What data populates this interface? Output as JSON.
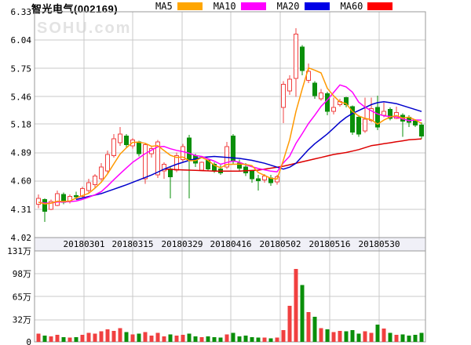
{
  "header": {
    "title": "智光电气(002169)",
    "legend": [
      {
        "label": "MA5",
        "color": "#ffa600"
      },
      {
        "label": "MA10",
        "color": "#ff00ff"
      },
      {
        "label": "MA20",
        "color": "#0000e6"
      },
      {
        "label": "MA60",
        "color": "#ff0000"
      }
    ]
  },
  "watermark": "SOHU.com",
  "chart_data": {
    "type": "candlestick",
    "title": "智光电气(002169)",
    "price_axis": {
      "ticks": [
        "6.33",
        "6.04",
        "5.75",
        "5.46",
        "5.18",
        "4.89",
        "4.60",
        "4.31",
        "4.02"
      ],
      "range": [
        4.02,
        6.33
      ]
    },
    "volume_axis": {
      "ticks": [
        {
          "v": 131,
          "label": "131万"
        },
        {
          "v": 98,
          "label": "98万"
        },
        {
          "v": 65,
          "label": "65万"
        },
        {
          "v": 32,
          "label": "32万"
        },
        {
          "v": 0,
          "label": "0"
        }
      ],
      "unit": "万",
      "max": 131
    },
    "x_axis": {
      "ticks": [
        "20180301",
        "20180315",
        "20180329",
        "20180416",
        "20180502",
        "20180516",
        "20180530"
      ]
    },
    "legend_entries": [
      "MA5",
      "MA10",
      "MA20",
      "MA60"
    ],
    "ohlcv": [
      [
        4.36,
        4.46,
        4.32,
        4.42,
        12
      ],
      [
        4.41,
        4.42,
        4.18,
        4.29,
        9
      ],
      [
        4.31,
        4.41,
        4.3,
        4.39,
        8
      ],
      [
        4.35,
        4.5,
        4.34,
        4.47,
        10
      ],
      [
        4.46,
        4.48,
        4.36,
        4.38,
        7
      ],
      [
        4.39,
        4.46,
        4.37,
        4.44,
        6
      ],
      [
        4.45,
        4.49,
        4.41,
        4.44,
        7
      ],
      [
        4.44,
        4.54,
        4.42,
        4.52,
        10
      ],
      [
        4.5,
        4.62,
        4.47,
        4.58,
        13
      ],
      [
        4.56,
        4.67,
        4.53,
        4.65,
        12
      ],
      [
        4.62,
        4.78,
        4.6,
        4.74,
        15
      ],
      [
        4.7,
        4.91,
        4.68,
        4.87,
        18
      ],
      [
        4.86,
        5.08,
        4.84,
        5.03,
        16
      ],
      [
        4.99,
        5.15,
        4.96,
        5.08,
        20
      ],
      [
        5.06,
        5.08,
        4.94,
        4.97,
        14
      ],
      [
        4.96,
        5.04,
        4.93,
        5.02,
        11
      ],
      [
        5.0,
        5.01,
        4.85,
        4.88,
        12
      ],
      [
        4.62,
        4.99,
        4.57,
        4.97,
        14
      ],
      [
        4.88,
        4.96,
        4.84,
        4.93,
        9
      ],
      [
        4.66,
        5.02,
        4.63,
        5.0,
        13
      ],
      [
        4.7,
        4.79,
        4.62,
        4.77,
        8
      ],
      [
        4.72,
        4.74,
        4.42,
        4.64,
        11
      ],
      [
        4.71,
        4.89,
        4.69,
        4.86,
        9
      ],
      [
        4.82,
        4.98,
        4.8,
        4.95,
        10
      ],
      [
        5.04,
        5.07,
        4.42,
        4.81,
        12
      ],
      [
        4.86,
        4.88,
        4.74,
        4.78,
        8
      ],
      [
        4.71,
        4.8,
        4.7,
        4.79,
        7
      ],
      [
        4.81,
        4.82,
        4.7,
        4.72,
        8
      ],
      [
        4.77,
        4.79,
        4.68,
        4.7,
        7
      ],
      [
        4.72,
        4.76,
        4.66,
        4.68,
        6
      ],
      [
        4.74,
        5.0,
        4.72,
        4.95,
        11
      ],
      [
        5.06,
        5.08,
        4.77,
        4.8,
        13
      ],
      [
        4.78,
        4.82,
        4.7,
        4.73,
        8
      ],
      [
        4.74,
        4.78,
        4.65,
        4.68,
        9
      ],
      [
        4.7,
        4.71,
        4.58,
        4.62,
        7
      ],
      [
        4.62,
        4.66,
        4.5,
        4.6,
        6
      ],
      [
        4.61,
        4.67,
        4.58,
        4.65,
        6
      ],
      [
        4.63,
        4.66,
        4.55,
        4.58,
        5
      ],
      [
        4.59,
        4.66,
        4.56,
        4.64,
        6
      ],
      [
        5.35,
        5.62,
        5.19,
        5.59,
        17
      ],
      [
        5.52,
        5.68,
        5.48,
        5.64,
        52
      ],
      [
        5.65,
        6.16,
        5.46,
        6.1,
        105
      ],
      [
        5.97,
        5.99,
        5.68,
        5.73,
        82
      ],
      [
        5.63,
        5.8,
        5.6,
        5.72,
        43
      ],
      [
        5.6,
        5.62,
        5.44,
        5.47,
        36
      ],
      [
        5.44,
        5.54,
        5.42,
        5.5,
        20
      ],
      [
        5.49,
        5.51,
        5.27,
        5.31,
        18
      ],
      [
        5.31,
        5.45,
        5.28,
        5.35,
        14
      ],
      [
        5.38,
        5.44,
        5.36,
        5.41,
        16
      ],
      [
        5.45,
        5.46,
        5.35,
        5.38,
        15
      ],
      [
        5.36,
        5.37,
        5.07,
        5.1,
        17
      ],
      [
        5.25,
        5.27,
        5.05,
        5.08,
        12
      ],
      [
        5.11,
        5.45,
        5.09,
        5.23,
        15
      ],
      [
        5.22,
        5.45,
        5.2,
        5.34,
        13
      ],
      [
        5.35,
        5.47,
        5.12,
        5.15,
        25
      ],
      [
        5.27,
        5.4,
        5.25,
        5.31,
        19
      ],
      [
        5.33,
        5.35,
        5.22,
        5.24,
        13
      ],
      [
        5.24,
        5.36,
        5.23,
        5.3,
        10
      ],
      [
        5.27,
        5.29,
        5.05,
        5.21,
        11
      ],
      [
        5.25,
        5.27,
        5.15,
        5.2,
        9
      ],
      [
        5.21,
        5.23,
        5.15,
        5.17,
        10
      ],
      [
        5.17,
        5.2,
        5.03,
        5.06,
        13
      ]
    ],
    "pre_close_seed": [
      4.37,
      4.39,
      4.36,
      4.38,
      4.4,
      4.38,
      4.35,
      4.37,
      4.39
    ],
    "ma20": [
      [
        6,
        4.41
      ],
      [
        10,
        4.47
      ],
      [
        14,
        4.56
      ],
      [
        18,
        4.66
      ],
      [
        20,
        4.72
      ],
      [
        22,
        4.77
      ],
      [
        24,
        4.81
      ],
      [
        26,
        4.84
      ],
      [
        28,
        4.85
      ],
      [
        30,
        4.84
      ],
      [
        32,
        4.83
      ],
      [
        34,
        4.81
      ],
      [
        36,
        4.78
      ],
      [
        38,
        4.74
      ],
      [
        39,
        4.72
      ],
      [
        40,
        4.74
      ],
      [
        41,
        4.78
      ],
      [
        42,
        4.85
      ],
      [
        43,
        4.92
      ],
      [
        44,
        4.98
      ],
      [
        45,
        5.03
      ],
      [
        46,
        5.08
      ],
      [
        47,
        5.14
      ],
      [
        48,
        5.2
      ],
      [
        49,
        5.25
      ],
      [
        50,
        5.29
      ],
      [
        51,
        5.32
      ],
      [
        52,
        5.35
      ],
      [
        53,
        5.38
      ],
      [
        54,
        5.4
      ],
      [
        55,
        5.41
      ],
      [
        56,
        5.4
      ],
      [
        57,
        5.39
      ],
      [
        58,
        5.37
      ],
      [
        59,
        5.35
      ],
      [
        60,
        5.33
      ],
      [
        61,
        5.31
      ]
    ],
    "ma60": [
      [
        20,
        4.72
      ],
      [
        24,
        4.71
      ],
      [
        28,
        4.7
      ],
      [
        32,
        4.7
      ],
      [
        35,
        4.71
      ],
      [
        37,
        4.73
      ],
      [
        39,
        4.75
      ],
      [
        41,
        4.78
      ],
      [
        43,
        4.81
      ],
      [
        45,
        4.84
      ],
      [
        47,
        4.87
      ],
      [
        49,
        4.89
      ],
      [
        51,
        4.92
      ],
      [
        53,
        4.96
      ],
      [
        55,
        4.98
      ],
      [
        57,
        5.0
      ],
      [
        59,
        5.02
      ],
      [
        61,
        5.03
      ]
    ],
    "colors": {
      "up": "#f04040",
      "down": "#0a8f0a",
      "ma5": "#ff9900",
      "ma10": "#ff00ff",
      "ma20": "#0000cc",
      "ma60": "#dd0000",
      "grid": "#c9c9c9",
      "frame": "#999999",
      "strip_bg": "#f0f0f7",
      "text": "#000000"
    }
  }
}
